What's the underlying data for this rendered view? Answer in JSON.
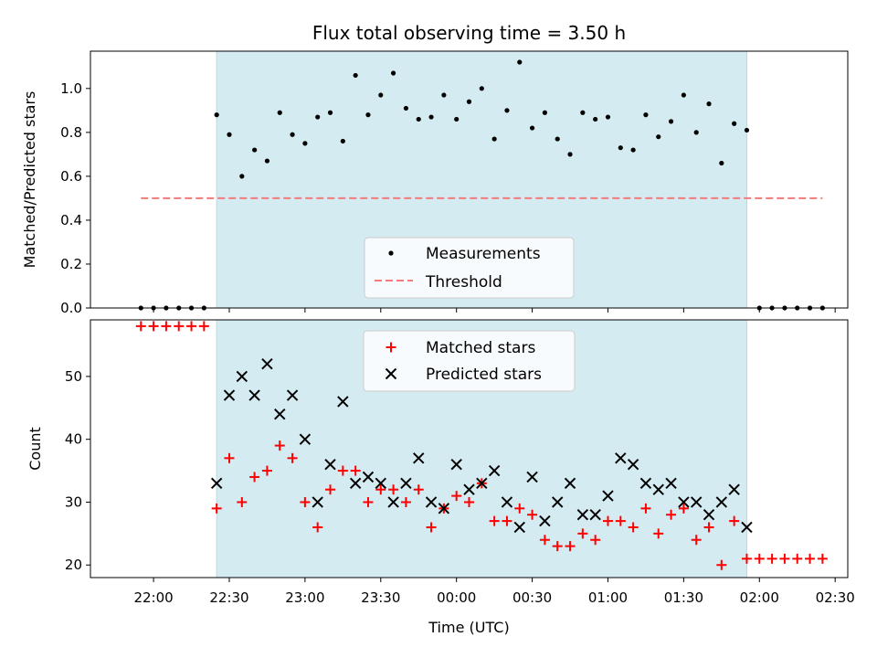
{
  "chart_data": [
    {
      "type": "scatter",
      "title": "Flux total observing time = 3.50 h",
      "ylabel": "Matched/Predicted stars",
      "ylim": [
        0,
        1.17
      ],
      "yticks": [
        0.0,
        0.2,
        0.4,
        0.6,
        0.8,
        1.0
      ],
      "ytick_labels": [
        "0.0",
        "0.2",
        "0.4",
        "0.6",
        "0.8",
        "1.0"
      ],
      "shaded_interval": [
        "22:25",
        "01:55"
      ],
      "shade_color": "#d4ebf2",
      "legend_position": "bottom-center",
      "series": [
        {
          "name": "Measurements",
          "marker": "dot",
          "color": "#000000",
          "x": [
            "21:55",
            "22:00",
            "22:05",
            "22:10",
            "22:15",
            "22:20",
            "22:25",
            "22:30",
            "22:35",
            "22:40",
            "22:45",
            "22:50",
            "22:55",
            "23:00",
            "23:05",
            "23:10",
            "23:15",
            "23:20",
            "23:25",
            "23:30",
            "23:35",
            "23:40",
            "23:45",
            "23:50",
            "23:55",
            "00:00",
            "00:05",
            "00:10",
            "00:15",
            "00:20",
            "00:25",
            "00:30",
            "00:35",
            "00:40",
            "00:45",
            "00:50",
            "00:55",
            "01:00",
            "01:05",
            "01:10",
            "01:15",
            "01:20",
            "01:25",
            "01:30",
            "01:35",
            "01:40",
            "01:45",
            "01:50",
            "01:55",
            "02:00",
            "02:05",
            "02:10",
            "02:15",
            "02:20",
            "02:25"
          ],
          "y": [
            0,
            0,
            0,
            0,
            0,
            0,
            0.88,
            0.79,
            0.6,
            0.72,
            0.67,
            0.89,
            0.79,
            0.75,
            0.87,
            0.89,
            0.76,
            1.06,
            0.88,
            0.97,
            1.07,
            0.91,
            0.86,
            0.87,
            0.97,
            0.86,
            0.94,
            1.0,
            0.77,
            0.9,
            1.12,
            0.82,
            0.89,
            0.77,
            0.7,
            0.89,
            0.86,
            0.87,
            0.73,
            0.72,
            0.88,
            0.78,
            0.85,
            0.97,
            0.8,
            0.93,
            0.66,
            0.84,
            0.81,
            0,
            0,
            0,
            0,
            0,
            0
          ]
        },
        {
          "name": "Threshold",
          "marker": "dashed-line",
          "color": "#f47a7a",
          "x": [
            "21:55",
            "02:25"
          ],
          "y": [
            0.5,
            0.5
          ]
        }
      ]
    },
    {
      "type": "scatter",
      "title": "",
      "xlabel": "Time (UTC)",
      "ylabel": "Count",
      "ylim": [
        18,
        59
      ],
      "yticks": [
        20,
        30,
        40,
        50
      ],
      "ytick_labels": [
        "20",
        "30",
        "40",
        "50"
      ],
      "xlim": [
        "21:35",
        "02:35"
      ],
      "xticks": [
        "22:00",
        "22:30",
        "23:00",
        "23:30",
        "00:00",
        "00:30",
        "01:00",
        "01:30",
        "02:00",
        "02:30"
      ],
      "xtick_labels": [
        "22:00",
        "22:30",
        "23:00",
        "23:30",
        "00:00",
        "00:30",
        "01:00",
        "01:30",
        "02:00",
        "02:30"
      ],
      "shaded_interval": [
        "22:25",
        "01:55"
      ],
      "shade_color": "#d4ebf2",
      "legend_position": "top-center",
      "series": [
        {
          "name": "Matched stars",
          "marker": "plus",
          "color": "#ff0000",
          "x": [
            "21:55",
            "22:00",
            "22:05",
            "22:10",
            "22:15",
            "22:20",
            "22:25",
            "22:30",
            "22:35",
            "22:40",
            "22:45",
            "22:50",
            "22:55",
            "23:00",
            "23:05",
            "23:10",
            "23:15",
            "23:20",
            "23:25",
            "23:30",
            "23:35",
            "23:40",
            "23:45",
            "23:50",
            "23:55",
            "00:00",
            "00:05",
            "00:10",
            "00:15",
            "00:20",
            "00:25",
            "00:30",
            "00:35",
            "00:40",
            "00:45",
            "00:50",
            "00:55",
            "01:00",
            "01:05",
            "01:10",
            "01:15",
            "01:20",
            "01:25",
            "01:30",
            "01:35",
            "01:40",
            "01:45",
            "01:50",
            "01:55",
            "02:00",
            "02:05",
            "02:10",
            "02:15",
            "02:20",
            "02:25"
          ],
          "y": [
            58,
            58,
            58,
            58,
            58,
            58,
            29,
            37,
            30,
            34,
            35,
            39,
            37,
            30,
            26,
            32,
            35,
            35,
            30,
            32,
            32,
            30,
            32,
            26,
            29,
            31,
            30,
            33,
            27,
            27,
            29,
            28,
            24,
            23,
            23,
            25,
            24,
            27,
            27,
            26,
            29,
            25,
            28,
            29,
            24,
            26,
            20,
            27,
            21,
            21,
            21,
            21,
            21,
            21,
            21
          ]
        },
        {
          "name": "Predicted stars",
          "marker": "x",
          "color": "#000000",
          "x": [
            "22:25",
            "22:30",
            "22:35",
            "22:40",
            "22:45",
            "22:50",
            "22:55",
            "23:00",
            "23:05",
            "23:10",
            "23:15",
            "23:20",
            "23:25",
            "23:30",
            "23:35",
            "23:40",
            "23:45",
            "23:50",
            "23:55",
            "00:00",
            "00:05",
            "00:10",
            "00:15",
            "00:20",
            "00:25",
            "00:30",
            "00:35",
            "00:40",
            "00:45",
            "00:50",
            "00:55",
            "01:00",
            "01:05",
            "01:10",
            "01:15",
            "01:20",
            "01:25",
            "01:30",
            "01:35",
            "01:40",
            "01:45",
            "01:50",
            "01:55"
          ],
          "y": [
            33,
            47,
            50,
            47,
            52,
            44,
            47,
            40,
            30,
            36,
            46,
            33,
            34,
            33,
            30,
            33,
            37,
            30,
            29,
            36,
            32,
            33,
            35,
            30,
            26,
            34,
            27,
            30,
            33,
            28,
            28,
            31,
            37,
            36,
            33,
            32,
            33,
            30,
            30,
            28,
            30,
            32,
            26
          ]
        }
      ]
    }
  ]
}
